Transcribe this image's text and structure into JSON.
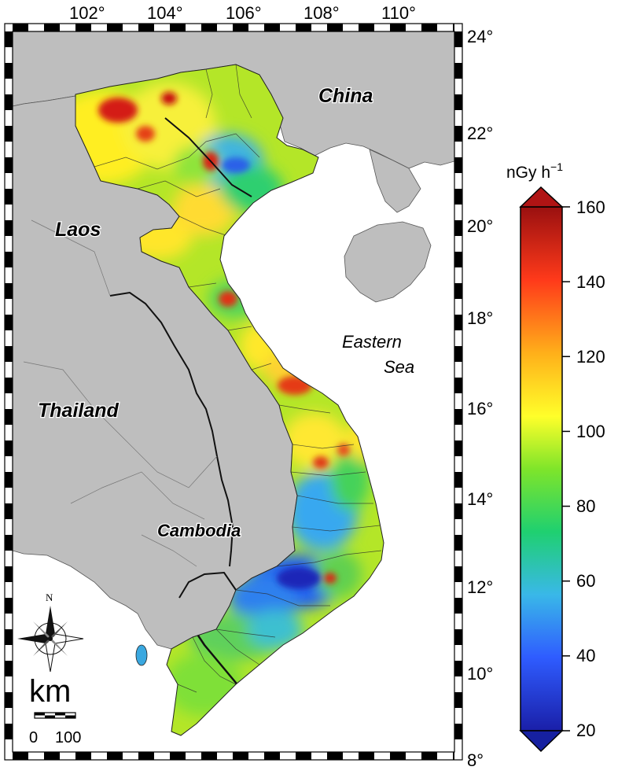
{
  "map": {
    "lon_ticks": [
      "102°",
      "104°",
      "106°",
      "108°",
      "110°"
    ],
    "lat_ticks": [
      "24°",
      "22°",
      "20°",
      "18°",
      "16°",
      "14°",
      "12°",
      "10°",
      "8°"
    ],
    "labels": {
      "china": "China",
      "laos": "Laos",
      "thailand": "Thailand",
      "cambodia": "Cambodia",
      "sea_line1": "Eastern",
      "sea_line2": "Sea"
    },
    "compass_north": "N",
    "scale_unit": "km",
    "scale_ticks": [
      "0",
      "100"
    ]
  },
  "colorbar": {
    "unit_base": "nGy h",
    "unit_exp": "−1",
    "range": [
      20,
      160
    ],
    "ticks": [
      "160",
      "140",
      "120",
      "100",
      "80",
      "60",
      "40",
      "20"
    ],
    "stops": [
      "#1a1fa8",
      "#2f5cff",
      "#39b8e8",
      "#1fd070",
      "#7fe52a",
      "#ffff2a",
      "#ffb01a",
      "#ff3a1a",
      "#9a1010"
    ]
  }
}
